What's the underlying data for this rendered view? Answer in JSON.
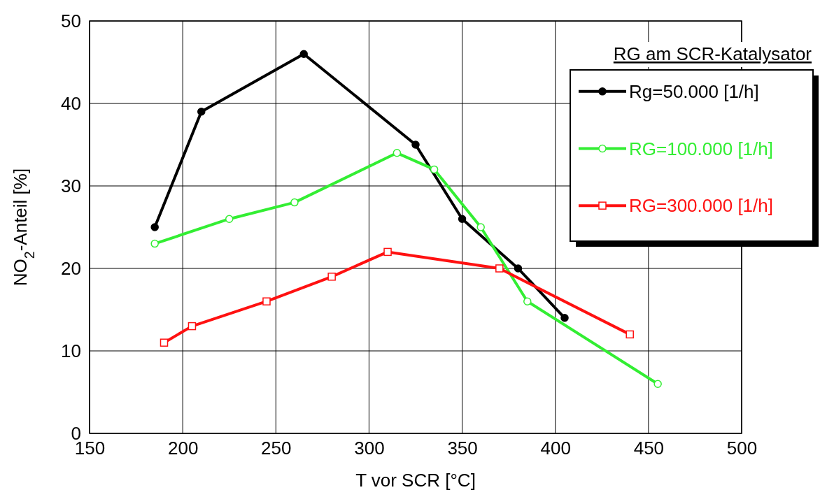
{
  "chart_data": {
    "type": "line",
    "xlabel": "T vor SCR [°C]",
    "ylabel": "NO$_{2}$-Anteil [%]",
    "legend_title": "RG am SCR-Katalysator",
    "xlim": [
      150,
      500
    ],
    "xticks": [
      150,
      200,
      250,
      300,
      350,
      400,
      450,
      500
    ],
    "ylim": [
      0,
      50
    ],
    "yticks": [
      0,
      10,
      20,
      30,
      40,
      50
    ],
    "grid": true,
    "legend": "right",
    "line_style": "solid",
    "series": [
      {
        "name": "Rg=50.000 [1/h]",
        "color": "#000000",
        "marker": "circle",
        "x": [
          185,
          210,
          265,
          325,
          350,
          380,
          405
        ],
        "values": [
          25,
          39,
          46,
          35,
          26,
          20,
          14
        ]
      },
      {
        "name": "RG=100.000 [1/h]",
        "color": "#33ee33",
        "marker": "circle",
        "x": [
          185,
          225,
          260,
          315,
          335,
          360,
          385,
          455
        ],
        "values": [
          23,
          26,
          28,
          34,
          32,
          25,
          16,
          6
        ]
      },
      {
        "name": "RG=300.000 [1/h]",
        "color": "#ff1111",
        "marker": "square",
        "x": [
          190,
          205,
          245,
          280,
          310,
          370,
          440
        ],
        "values": [
          11,
          13,
          16,
          19,
          22,
          20,
          12
        ]
      }
    ]
  }
}
